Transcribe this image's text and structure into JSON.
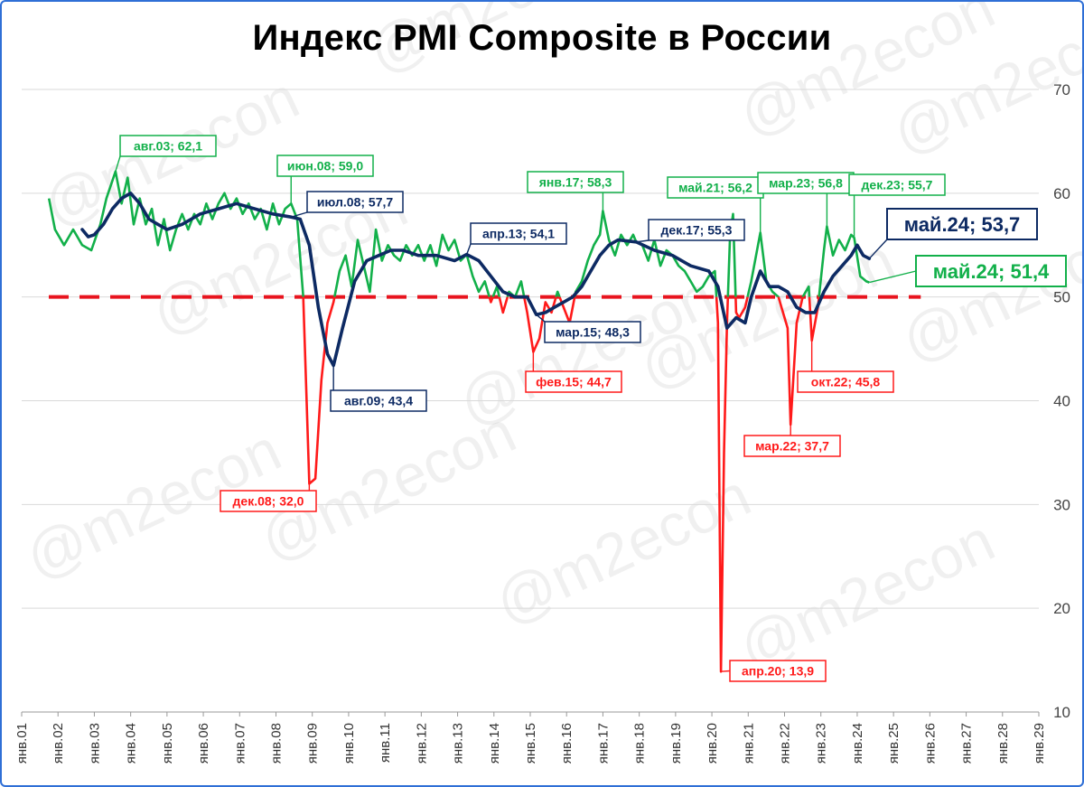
{
  "page": {
    "title": "Индекс PMI Composite в России",
    "watermark": "@m2econ"
  },
  "colors": {
    "pmi": "#12b04a",
    "ma": "#0d2a63",
    "below50": "#ff1a1a",
    "threshold": "#e8141e",
    "grid": "#d9d9d9"
  },
  "chart_data": {
    "type": "line",
    "title": "Индекс PMI Composite в России",
    "xlabel": "",
    "ylabel": "",
    "ylim": [
      10,
      70
    ],
    "yticks": [
      10,
      20,
      30,
      40,
      50,
      60,
      70
    ],
    "xlim": [
      2001,
      2029
    ],
    "x_categories": [
      "янв.01",
      "янв.02",
      "янв.03",
      "янв.04",
      "янв.05",
      "янв.06",
      "янв.07",
      "янв.08",
      "янв.09",
      "янв.10",
      "янв.11",
      "янв.12",
      "янв.13",
      "янв.14",
      "янв.15",
      "янв.16",
      "янв.17",
      "янв.18",
      "янв.19",
      "янв.20",
      "янв.21",
      "янв.22",
      "янв.23",
      "янв.24",
      "янв.25",
      "янв.26",
      "янв.27",
      "янв.28",
      "янв.29"
    ],
    "grid": true,
    "legend": "none",
    "threshold": 50,
    "series": [
      {
        "key": "pmi",
        "points": [
          [
            "2001-10",
            59.5
          ],
          [
            "2001-12",
            56.5
          ],
          [
            "2002-03",
            55.0
          ],
          [
            "2002-06",
            56.5
          ],
          [
            "2002-09",
            55.0
          ],
          [
            "2002-12",
            54.5
          ],
          [
            "2003-03",
            57.0
          ],
          [
            "2003-05",
            59.5
          ],
          [
            "2003-08",
            62.1
          ],
          [
            "2003-10",
            59.0
          ],
          [
            "2003-12",
            61.5
          ],
          [
            "2004-02",
            57.0
          ],
          [
            "2004-04",
            59.5
          ],
          [
            "2004-06",
            57.0
          ],
          [
            "2004-08",
            58.5
          ],
          [
            "2004-10",
            55.0
          ],
          [
            "2004-12",
            57.5
          ],
          [
            "2005-02",
            54.5
          ],
          [
            "2005-04",
            56.5
          ],
          [
            "2005-06",
            58.0
          ],
          [
            "2005-08",
            56.5
          ],
          [
            "2005-10",
            58.0
          ],
          [
            "2005-12",
            57.0
          ],
          [
            "2006-02",
            59.0
          ],
          [
            "2006-04",
            57.5
          ],
          [
            "2006-06",
            59.0
          ],
          [
            "2006-08",
            60.0
          ],
          [
            "2006-10",
            58.5
          ],
          [
            "2006-12",
            59.5
          ],
          [
            "2007-02",
            58.0
          ],
          [
            "2007-04",
            59.0
          ],
          [
            "2007-06",
            57.5
          ],
          [
            "2007-08",
            58.5
          ],
          [
            "2007-10",
            56.5
          ],
          [
            "2007-12",
            59.0
          ],
          [
            "2008-02",
            57.0
          ],
          [
            "2008-04",
            58.5
          ],
          [
            "2008-06",
            59.0
          ],
          [
            "2008-08",
            57.5
          ],
          [
            "2008-10",
            50.0
          ],
          [
            "2008-12",
            32.0
          ],
          [
            "2009-02",
            32.5
          ],
          [
            "2009-04",
            42.0
          ],
          [
            "2009-06",
            47.5
          ],
          [
            "2009-08",
            49.5
          ],
          [
            "2009-10",
            52.5
          ],
          [
            "2009-12",
            54.0
          ],
          [
            "2010-02",
            51.0
          ],
          [
            "2010-04",
            55.5
          ],
          [
            "2010-06",
            53.0
          ],
          [
            "2010-08",
            50.5
          ],
          [
            "2010-10",
            56.5
          ],
          [
            "2010-12",
            53.5
          ],
          [
            "2011-02",
            55.0
          ],
          [
            "2011-04",
            54.0
          ],
          [
            "2011-06",
            53.5
          ],
          [
            "2011-08",
            55.0
          ],
          [
            "2011-10",
            54.0
          ],
          [
            "2011-12",
            55.0
          ],
          [
            "2012-02",
            53.5
          ],
          [
            "2012-04",
            55.0
          ],
          [
            "2012-06",
            53.0
          ],
          [
            "2012-08",
            56.0
          ],
          [
            "2012-10",
            54.5
          ],
          [
            "2012-12",
            55.5
          ],
          [
            "2013-02",
            53.5
          ],
          [
            "2013-04",
            54.1
          ],
          [
            "2013-06",
            52.0
          ],
          [
            "2013-08",
            50.5
          ],
          [
            "2013-10",
            51.5
          ],
          [
            "2013-12",
            49.5
          ],
          [
            "2014-02",
            51.0
          ],
          [
            "2014-04",
            48.5
          ],
          [
            "2014-06",
            50.5
          ],
          [
            "2014-08",
            50.0
          ],
          [
            "2014-10",
            51.5
          ],
          [
            "2014-12",
            48.5
          ],
          [
            "2015-02",
            44.7
          ],
          [
            "2015-04",
            46.0
          ],
          [
            "2015-06",
            49.5
          ],
          [
            "2015-08",
            48.5
          ],
          [
            "2015-10",
            50.5
          ],
          [
            "2015-12",
            49.0
          ],
          [
            "2016-02",
            47.5
          ],
          [
            "2016-04",
            50.5
          ],
          [
            "2016-06",
            51.5
          ],
          [
            "2016-08",
            53.5
          ],
          [
            "2016-10",
            55.0
          ],
          [
            "2016-12",
            56.0
          ],
          [
            "2017-01",
            58.3
          ],
          [
            "2017-03",
            55.5
          ],
          [
            "2017-05",
            54.0
          ],
          [
            "2017-07",
            56.0
          ],
          [
            "2017-09",
            55.0
          ],
          [
            "2017-11",
            56.0
          ],
          [
            "2017-12",
            55.3
          ],
          [
            "2018-02",
            55.0
          ],
          [
            "2018-04",
            53.5
          ],
          [
            "2018-06",
            55.5
          ],
          [
            "2018-08",
            53.0
          ],
          [
            "2018-10",
            54.5
          ],
          [
            "2018-12",
            54.0
          ],
          [
            "2019-02",
            53.0
          ],
          [
            "2019-04",
            52.5
          ],
          [
            "2019-06",
            51.5
          ],
          [
            "2019-08",
            50.5
          ],
          [
            "2019-10",
            51.0
          ],
          [
            "2019-12",
            52.0
          ],
          [
            "2020-02",
            52.5
          ],
          [
            "2020-03",
            47.5
          ],
          [
            "2020-04",
            13.9
          ],
          [
            "2020-05",
            35.0
          ],
          [
            "2020-06",
            47.5
          ],
          [
            "2020-07",
            56.0
          ],
          [
            "2020-08",
            58.0
          ],
          [
            "2020-09",
            48.5
          ],
          [
            "2020-10",
            48.0
          ],
          [
            "2020-12",
            49.0
          ],
          [
            "2021-02",
            51.5
          ],
          [
            "2021-05",
            56.2
          ],
          [
            "2021-07",
            51.5
          ],
          [
            "2021-09",
            50.5
          ],
          [
            "2021-11",
            50.0
          ],
          [
            "2021-12",
            49.0
          ],
          [
            "2022-02",
            47.0
          ],
          [
            "2022-03",
            37.7
          ],
          [
            "2022-05",
            47.5
          ],
          [
            "2022-07",
            50.0
          ],
          [
            "2022-09",
            51.0
          ],
          [
            "2022-10",
            45.8
          ],
          [
            "2022-12",
            49.0
          ],
          [
            "2023-02",
            54.5
          ],
          [
            "2023-03",
            56.8
          ],
          [
            "2023-05",
            54.0
          ],
          [
            "2023-07",
            55.5
          ],
          [
            "2023-09",
            54.5
          ],
          [
            "2023-11",
            56.0
          ],
          [
            "2023-12",
            55.7
          ],
          [
            "2024-02",
            52.0
          ],
          [
            "2024-04",
            51.5
          ],
          [
            "2024-05",
            51.4
          ]
        ]
      },
      {
        "key": "ma",
        "points": [
          [
            "2002-09",
            56.5
          ],
          [
            "2002-11",
            55.8
          ],
          [
            "2003-01",
            56.0
          ],
          [
            "2003-04",
            57.0
          ],
          [
            "2003-07",
            58.5
          ],
          [
            "2003-10",
            59.5
          ],
          [
            "2004-01",
            60.0
          ],
          [
            "2004-04",
            59.0
          ],
          [
            "2004-07",
            57.5
          ],
          [
            "2004-10",
            57.0
          ],
          [
            "2005-01",
            56.5
          ],
          [
            "2005-06",
            57.0
          ],
          [
            "2005-12",
            58.0
          ],
          [
            "2006-06",
            58.5
          ],
          [
            "2006-12",
            59.0
          ],
          [
            "2007-06",
            58.5
          ],
          [
            "2007-12",
            58.0
          ],
          [
            "2008-06",
            57.7
          ],
          [
            "2008-09",
            57.5
          ],
          [
            "2008-12",
            55.0
          ],
          [
            "2009-03",
            49.0
          ],
          [
            "2009-06",
            44.5
          ],
          [
            "2009-08",
            43.4
          ],
          [
            "2009-11",
            47.0
          ],
          [
            "2010-03",
            51.5
          ],
          [
            "2010-07",
            53.5
          ],
          [
            "2010-11",
            54.0
          ],
          [
            "2011-03",
            54.5
          ],
          [
            "2011-07",
            54.5
          ],
          [
            "2011-12",
            54.0
          ],
          [
            "2012-06",
            54.0
          ],
          [
            "2012-12",
            53.5
          ],
          [
            "2013-04",
            54.1
          ],
          [
            "2013-08",
            53.5
          ],
          [
            "2013-12",
            52.0
          ],
          [
            "2014-04",
            50.5
          ],
          [
            "2014-08",
            50.0
          ],
          [
            "2014-12",
            50.0
          ],
          [
            "2015-03",
            48.3
          ],
          [
            "2015-06",
            48.5
          ],
          [
            "2015-09",
            49.0
          ],
          [
            "2015-12",
            49.5
          ],
          [
            "2016-03",
            50.0
          ],
          [
            "2016-06",
            51.0
          ],
          [
            "2016-09",
            52.5
          ],
          [
            "2016-12",
            54.0
          ],
          [
            "2017-03",
            55.0
          ],
          [
            "2017-06",
            55.5
          ],
          [
            "2017-12",
            55.3
          ],
          [
            "2018-06",
            54.5
          ],
          [
            "2018-12",
            54.0
          ],
          [
            "2019-06",
            53.0
          ],
          [
            "2019-12",
            52.5
          ],
          [
            "2020-03",
            51.0
          ],
          [
            "2020-06",
            47.0
          ],
          [
            "2020-09",
            48.0
          ],
          [
            "2020-12",
            47.5
          ],
          [
            "2021-02",
            50.0
          ],
          [
            "2021-05",
            52.5
          ],
          [
            "2021-08",
            51.0
          ],
          [
            "2021-11",
            51.0
          ],
          [
            "2022-02",
            50.5
          ],
          [
            "2022-05",
            49.0
          ],
          [
            "2022-08",
            48.5
          ],
          [
            "2022-11",
            48.5
          ],
          [
            "2023-02",
            50.5
          ],
          [
            "2023-05",
            52.0
          ],
          [
            "2023-08",
            53.0
          ],
          [
            "2023-11",
            54.0
          ],
          [
            "2024-01",
            55.0
          ],
          [
            "2024-03",
            54.0
          ],
          [
            "2024-05",
            53.7
          ]
        ]
      }
    ],
    "annotations": [
      {
        "text": "авг.03; 62,1",
        "series": "pmi",
        "color": "#12b04a",
        "anchor": "2003-08",
        "value": 62.1
      },
      {
        "text": "июн.08; 59,0",
        "series": "pmi",
        "color": "#12b04a",
        "anchor": "2008-06",
        "value": 59.0
      },
      {
        "text": "янв.17; 58,3",
        "series": "pmi",
        "color": "#12b04a",
        "anchor": "2017-01",
        "value": 58.3
      },
      {
        "text": "май.21; 56,2",
        "series": "pmi",
        "color": "#12b04a",
        "anchor": "2021-05",
        "value": 56.2
      },
      {
        "text": "мар.23; 56,8",
        "series": "pmi",
        "color": "#12b04a",
        "anchor": "2023-03",
        "value": 56.8
      },
      {
        "text": "дек.23; 55,7",
        "series": "pmi",
        "color": "#12b04a",
        "anchor": "2023-12",
        "value": 55.7
      },
      {
        "text": "май.24; 51,4",
        "series": "pmi",
        "color": "#12b04a",
        "anchor": "2024-05",
        "value": 51.4,
        "large": true
      },
      {
        "text": "июл.08; 57,7",
        "series": "ma",
        "color": "#0d2a63",
        "anchor": "2008-06",
        "value": 57.7
      },
      {
        "text": "авг.09; 43,4",
        "series": "ma",
        "color": "#0d2a63",
        "anchor": "2009-08",
        "value": 43.4
      },
      {
        "text": "апр.13; 54,1",
        "series": "ma",
        "color": "#0d2a63",
        "anchor": "2013-04",
        "value": 54.1
      },
      {
        "text": "мар.15; 48,3",
        "series": "ma",
        "color": "#0d2a63",
        "anchor": "2015-03",
        "value": 48.3
      },
      {
        "text": "дек.17; 55,3",
        "series": "ma",
        "color": "#0d2a63",
        "anchor": "2017-12",
        "value": 55.3
      },
      {
        "text": "май.24; 53,7",
        "series": "ma",
        "color": "#0d2a63",
        "anchor": "2024-05",
        "value": 53.7,
        "large": true
      },
      {
        "text": "дек.08; 32,0",
        "series": "pmi",
        "color": "#ff1a1a",
        "anchor": "2008-12",
        "value": 32.0
      },
      {
        "text": "фев.15; 44,7",
        "series": "pmi",
        "color": "#ff1a1a",
        "anchor": "2015-02",
        "value": 44.7
      },
      {
        "text": "апр.20; 13,9",
        "series": "pmi",
        "color": "#ff1a1a",
        "anchor": "2020-04",
        "value": 13.9
      },
      {
        "text": "мар.22; 37,7",
        "series": "pmi",
        "color": "#ff1a1a",
        "anchor": "2022-03",
        "value": 37.7
      },
      {
        "text": "окт.22; 45,8",
        "series": "pmi",
        "color": "#ff1a1a",
        "anchor": "2022-10",
        "value": 45.8
      }
    ]
  }
}
